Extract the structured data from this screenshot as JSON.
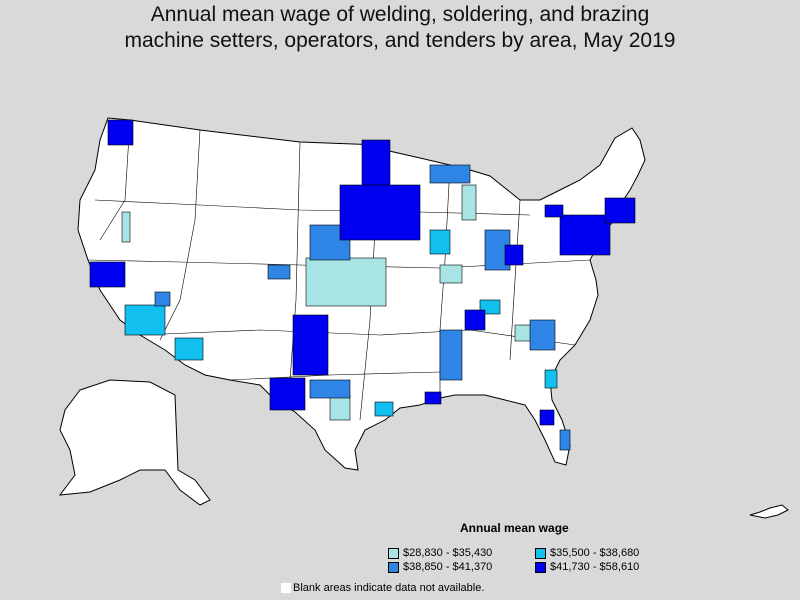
{
  "title_line1": "Annual mean wage of welding, soldering, and brazing",
  "title_line2": "machine setters, operators, and tenders by area, May 2019",
  "legend": {
    "title": "Annual mean wage",
    "items": [
      {
        "label": "$28,830 - $35,430",
        "color": "#a8e4e4"
      },
      {
        "label": "$35,500 - $38,680",
        "color": "#12c0f0"
      },
      {
        "label": "$38,850 - $41,370",
        "color": "#2f85e6"
      },
      {
        "label": "$41,730 - $58,610",
        "color": "#0000f0"
      }
    ]
  },
  "footnote": "Blank areas indicate data not available.",
  "colors": {
    "background": "#d9d9d9",
    "land": "#ffffff",
    "border": "#000000"
  }
}
